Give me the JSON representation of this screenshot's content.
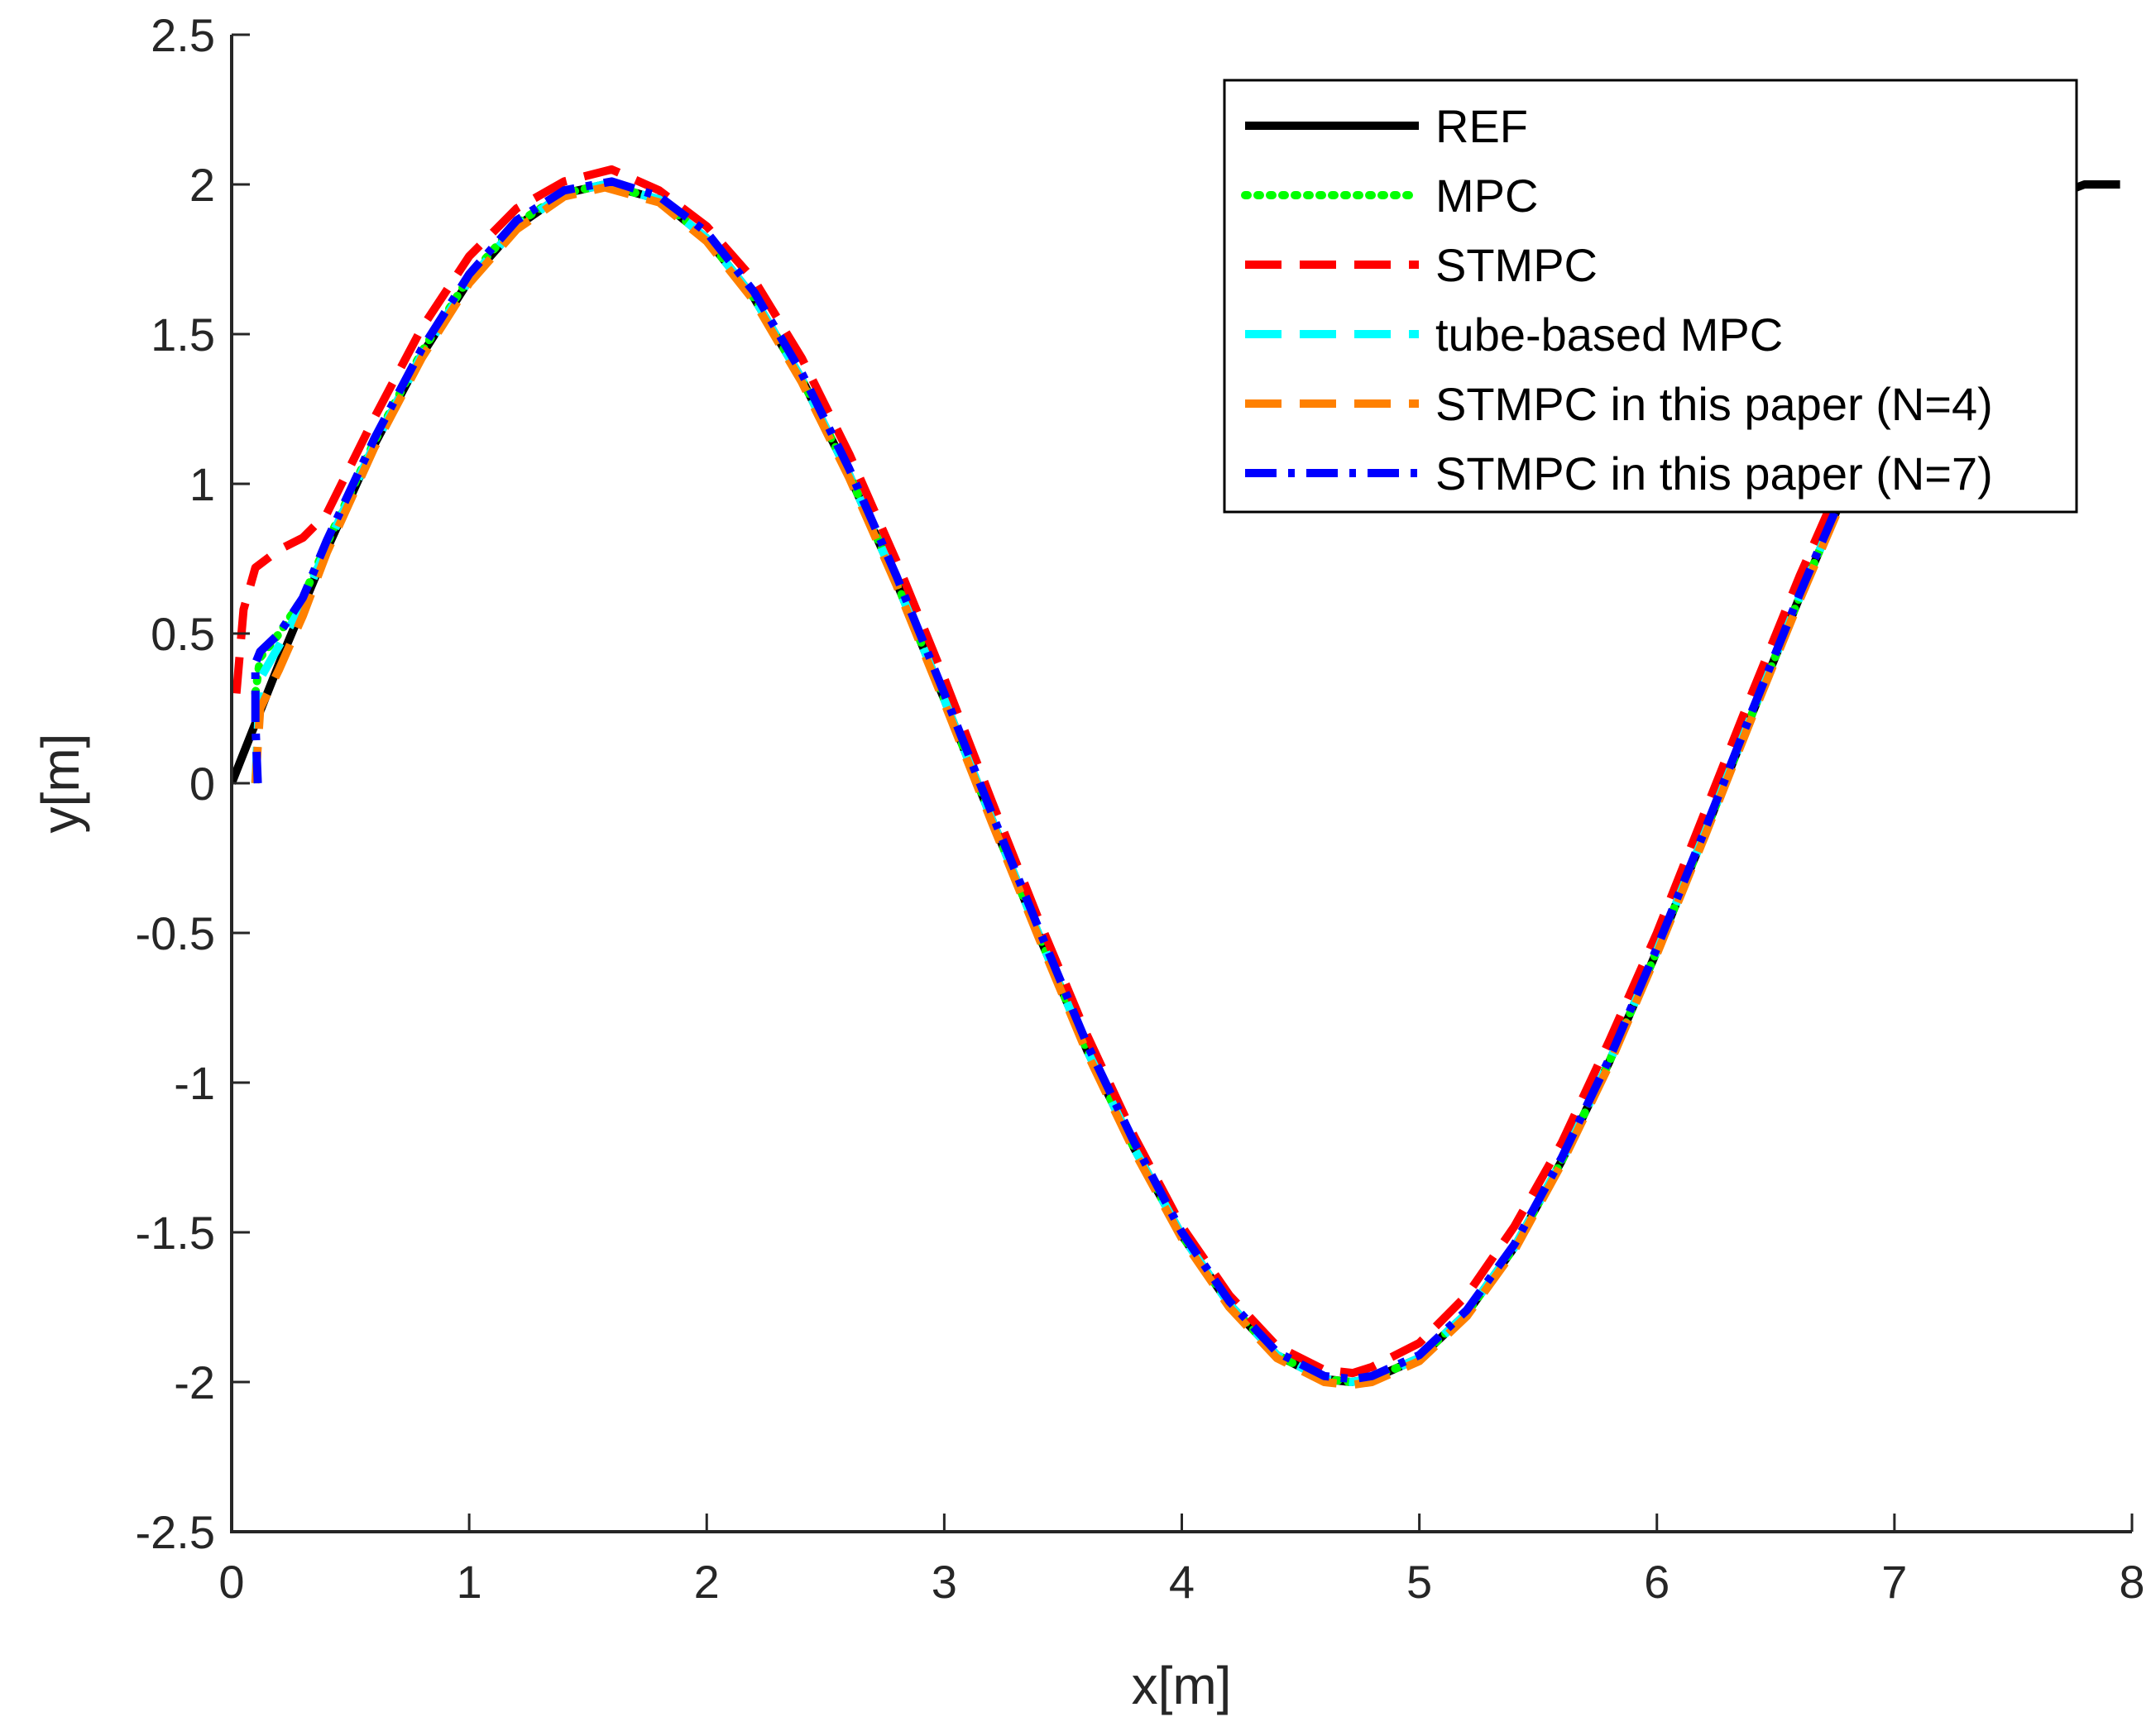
{
  "chart_data": {
    "type": "line",
    "title": "",
    "xlabel": "x[m]",
    "ylabel": "y[m]",
    "xlim": [
      0,
      8
    ],
    "ylim": [
      -2.5,
      2.5
    ],
    "xticks": [
      0,
      1,
      2,
      3,
      4,
      5,
      6,
      7,
      8
    ],
    "yticks": [
      -2.5,
      -2,
      -1.5,
      -1,
      -0.5,
      0,
      0.5,
      1,
      1.5,
      2,
      2.5
    ],
    "grid": false,
    "legend_position": "top-right",
    "series": [
      {
        "name": "REF",
        "color": "#000000",
        "style": "solid",
        "x": [
          0,
          0.2,
          0.4,
          0.6,
          0.8,
          1.0,
          1.2,
          1.4,
          1.571,
          1.8,
          2.0,
          2.2,
          2.4,
          2.6,
          2.8,
          3.0,
          3.2,
          3.4,
          3.6,
          3.8,
          4.0,
          4.2,
          4.4,
          4.6,
          4.712,
          4.8,
          5.0,
          5.2,
          5.4,
          5.6,
          5.8,
          6.0,
          6.2,
          6.4,
          6.6,
          6.8,
          7.0,
          7.2,
          7.4,
          7.6,
          7.8,
          7.95
        ],
        "y": [
          0,
          0.4,
          0.78,
          1.13,
          1.43,
          1.68,
          1.86,
          1.97,
          2.0,
          1.95,
          1.82,
          1.62,
          1.35,
          1.03,
          0.67,
          0.28,
          -0.12,
          -0.51,
          -0.89,
          -1.22,
          -1.51,
          -1.74,
          -1.91,
          -1.99,
          -2.0,
          -1.99,
          -1.92,
          -1.77,
          -1.55,
          -1.26,
          -0.93,
          -0.56,
          -0.17,
          0.23,
          0.62,
          0.99,
          1.32,
          1.59,
          1.8,
          1.94,
          2.0,
          2.0
        ]
      },
      {
        "name": "MPC",
        "color": "#00ff00",
        "style": "dotted",
        "x": [
          0.1,
          0.12,
          0.2,
          0.3,
          0.4,
          0.6,
          0.8,
          1.0,
          1.2,
          1.4,
          1.571,
          1.8,
          2.0,
          2.2,
          2.4,
          2.6,
          2.8,
          3.0,
          3.2,
          3.4,
          3.6,
          3.8,
          4.0,
          4.2,
          4.4,
          4.6,
          4.712,
          4.8,
          5.0,
          5.2,
          5.4,
          5.6,
          5.8,
          6.0,
          6.2,
          6.4,
          6.6,
          6.8,
          7.0,
          7.2
        ],
        "y": [
          0.3,
          0.42,
          0.5,
          0.62,
          0.8,
          1.14,
          1.44,
          1.69,
          1.87,
          1.97,
          2.0,
          1.95,
          1.82,
          1.62,
          1.35,
          1.03,
          0.67,
          0.28,
          -0.12,
          -0.51,
          -0.89,
          -1.22,
          -1.51,
          -1.74,
          -1.91,
          -1.99,
          -2.0,
          -1.99,
          -1.92,
          -1.77,
          -1.55,
          -1.26,
          -0.93,
          -0.56,
          -0.17,
          0.23,
          0.62,
          0.99,
          1.32,
          1.59
        ]
      },
      {
        "name": "STMPC",
        "color": "#ff0000",
        "style": "dashed",
        "x": [
          0.02,
          0.05,
          0.1,
          0.2,
          0.3,
          0.4,
          0.6,
          0.8,
          1.0,
          1.2,
          1.4,
          1.6,
          1.8,
          2.0,
          2.2,
          2.4,
          2.6,
          2.8,
          3.0,
          3.2,
          3.4,
          3.6,
          3.8,
          4.0,
          4.2,
          4.4,
          4.6,
          4.72,
          4.8,
          5.0,
          5.2,
          5.4,
          5.6,
          5.8,
          6.0,
          6.2,
          6.4,
          6.6,
          6.8,
          7.0,
          7.2
        ],
        "y": [
          0.3,
          0.58,
          0.72,
          0.78,
          0.82,
          0.9,
          1.22,
          1.52,
          1.76,
          1.92,
          2.01,
          2.05,
          1.98,
          1.86,
          1.68,
          1.42,
          1.1,
          0.74,
          0.35,
          -0.06,
          -0.46,
          -0.84,
          -1.18,
          -1.48,
          -1.71,
          -1.88,
          -1.96,
          -1.97,
          -1.95,
          -1.87,
          -1.71,
          -1.48,
          -1.2,
          -0.86,
          -0.5,
          -0.1,
          0.3,
          0.69,
          1.05,
          1.38,
          1.64
        ]
      },
      {
        "name": "tube-based MPC",
        "color": "#00ffff",
        "style": "dashed",
        "x": [
          0.1,
          0.12,
          0.2,
          0.3,
          0.4,
          0.6,
          0.8,
          1.0,
          1.2,
          1.4,
          1.571,
          1.8,
          2.0,
          2.2,
          2.4,
          2.6,
          2.8,
          3.0,
          3.2,
          3.4,
          3.6,
          3.8,
          4.0,
          4.2,
          4.4,
          4.6,
          4.712,
          4.8,
          5.0,
          5.2,
          5.4,
          5.6,
          5.8,
          6.0,
          6.2,
          6.4,
          6.6,
          6.8,
          7.0,
          7.2
        ],
        "y": [
          0.0,
          0.35,
          0.46,
          0.6,
          0.79,
          1.13,
          1.43,
          1.68,
          1.86,
          1.97,
          2.0,
          1.95,
          1.82,
          1.62,
          1.35,
          1.03,
          0.67,
          0.28,
          -0.12,
          -0.51,
          -0.89,
          -1.22,
          -1.51,
          -1.74,
          -1.91,
          -1.99,
          -2.0,
          -1.99,
          -1.92,
          -1.77,
          -1.55,
          -1.26,
          -0.93,
          -0.56,
          -0.17,
          0.23,
          0.62,
          0.99,
          1.32,
          1.59
        ]
      },
      {
        "name": "STMPC in this paper (N=4)",
        "color": "#ff8000",
        "style": "dashed",
        "x": [
          0.1,
          0.12,
          0.2,
          0.3,
          0.4,
          0.6,
          0.8,
          1.0,
          1.2,
          1.4,
          1.571,
          1.8,
          2.0,
          2.2,
          2.4,
          2.6,
          2.8,
          3.0,
          3.2,
          3.4,
          3.6,
          3.8,
          4.0,
          4.2,
          4.4,
          4.6,
          4.712,
          4.8,
          5.0,
          5.2,
          5.4,
          5.6,
          5.8,
          6.0,
          6.2,
          6.4,
          6.6,
          6.8,
          7.0,
          7.2
        ],
        "y": [
          0.0,
          0.25,
          0.38,
          0.56,
          0.77,
          1.12,
          1.42,
          1.67,
          1.85,
          1.96,
          1.99,
          1.94,
          1.81,
          1.61,
          1.34,
          1.02,
          0.66,
          0.27,
          -0.13,
          -0.52,
          -0.9,
          -1.23,
          -1.52,
          -1.75,
          -1.92,
          -2.0,
          -2.01,
          -2.0,
          -1.93,
          -1.78,
          -1.56,
          -1.27,
          -0.94,
          -0.57,
          -0.18,
          0.22,
          0.61,
          0.98,
          1.31,
          1.58
        ]
      },
      {
        "name": "STMPC in this paper (N=7)",
        "color": "#0000ff",
        "style": "dashdot",
        "x": [
          0.11,
          0.1,
          0.1,
          0.12,
          0.2,
          0.3,
          0.4,
          0.6,
          0.8,
          1.0,
          1.2,
          1.4,
          1.6,
          1.8,
          2.0,
          2.2,
          2.4,
          2.6,
          2.8,
          3.0,
          3.2,
          3.4,
          3.6,
          3.8,
          4.0,
          4.2,
          4.4,
          4.6,
          4.72,
          4.8,
          5.0,
          5.2,
          5.4,
          5.6,
          5.8,
          6.0,
          6.2,
          6.4,
          6.6,
          6.8,
          7.0,
          7.2
        ],
        "y": [
          0.0,
          0.2,
          0.4,
          0.44,
          0.5,
          0.62,
          0.81,
          1.15,
          1.45,
          1.7,
          1.88,
          1.98,
          2.01,
          1.96,
          1.84,
          1.64,
          1.37,
          1.05,
          0.69,
          0.3,
          -0.1,
          -0.49,
          -0.87,
          -1.2,
          -1.5,
          -1.73,
          -1.9,
          -1.98,
          -1.99,
          -1.98,
          -1.91,
          -1.76,
          -1.54,
          -1.25,
          -0.92,
          -0.55,
          -0.16,
          0.24,
          0.63,
          1.0,
          1.33,
          1.6
        ]
      }
    ]
  }
}
